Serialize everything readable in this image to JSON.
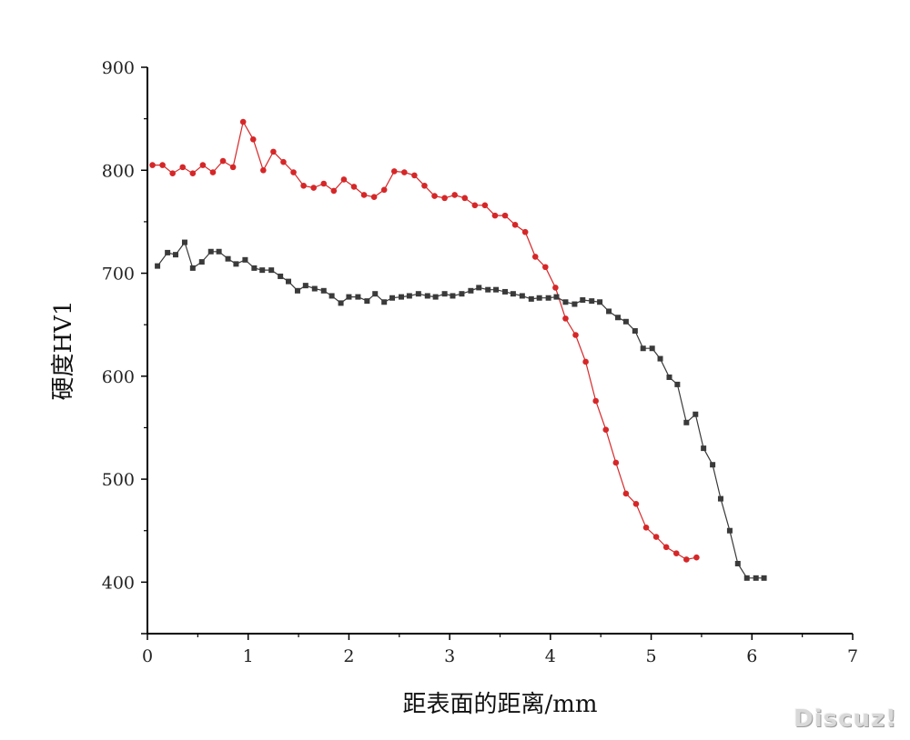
{
  "chart_data": {
    "type": "line",
    "title": "",
    "xlabel": "距表面的距离/mm",
    "ylabel": "硬度HV1",
    "xlim": [
      0,
      7
    ],
    "ylim": [
      350,
      900
    ],
    "xticks": [
      0,
      1,
      2,
      3,
      4,
      5,
      6,
      7
    ],
    "yticks": [
      400,
      500,
      600,
      700,
      800,
      900
    ],
    "grid": false,
    "legend": "none",
    "series": [
      {
        "color": "#d62728",
        "marker": "circle",
        "x": [
          0.05,
          0.15,
          0.25,
          0.35,
          0.45,
          0.55,
          0.65,
          0.75,
          0.85,
          0.95,
          1.05,
          1.15,
          1.25,
          1.35,
          1.45,
          1.55,
          1.65,
          1.75,
          1.85,
          1.95,
          2.05,
          2.15,
          2.25,
          2.35,
          2.45,
          2.55,
          2.65,
          2.75,
          2.85,
          2.95,
          3.05,
          3.15,
          3.25,
          3.35,
          3.45,
          3.55,
          3.65,
          3.75,
          3.85,
          3.95,
          4.05,
          4.15,
          4.25,
          4.35,
          4.45,
          4.55,
          4.65,
          4.75,
          4.85,
          4.95,
          5.05,
          5.15,
          5.25,
          5.35,
          5.45
        ],
        "y": [
          805,
          805,
          797,
          803,
          797,
          805,
          798,
          809,
          803,
          847,
          830,
          800,
          818,
          808,
          798,
          785,
          783,
          787,
          780,
          791,
          784,
          776,
          774,
          781,
          799,
          798,
          795,
          785,
          775,
          773,
          776,
          773,
          766,
          766,
          756,
          756,
          747,
          740,
          716,
          706,
          686,
          656,
          640,
          614,
          576,
          548,
          516,
          486,
          476,
          453,
          444,
          434,
          428,
          422,
          424
        ]
      },
      {
        "color": "#3a3a3a",
        "marker": "square",
        "x": [
          0.1,
          0.2,
          0.28,
          0.37,
          0.45,
          0.54,
          0.63,
          0.71,
          0.8,
          0.88,
          0.97,
          1.06,
          1.14,
          1.23,
          1.32,
          1.4,
          1.49,
          1.57,
          1.66,
          1.75,
          1.83,
          1.92,
          2.0,
          2.09,
          2.18,
          2.26,
          2.35,
          2.43,
          2.52,
          2.6,
          2.69,
          2.78,
          2.86,
          2.95,
          3.03,
          3.12,
          3.21,
          3.29,
          3.38,
          3.46,
          3.55,
          3.63,
          3.72,
          3.81,
          3.89,
          3.98,
          4.06,
          4.15,
          4.24,
          4.32,
          4.41,
          4.49,
          4.58,
          4.67,
          4.75,
          4.84,
          4.92,
          5.01,
          5.09,
          5.18,
          5.26,
          5.35,
          5.44,
          5.52,
          5.61,
          5.69,
          5.78,
          5.86,
          5.95,
          6.04,
          6.12
        ],
        "y": [
          707,
          720,
          718,
          730,
          705,
          711,
          721,
          721,
          714,
          709,
          713,
          705,
          703,
          703,
          697,
          692,
          683,
          688,
          685,
          683,
          678,
          671,
          677,
          677,
          673,
          680,
          672,
          676,
          677,
          678,
          680,
          678,
          677,
          680,
          678,
          680,
          683,
          686,
          684,
          684,
          682,
          680,
          678,
          675,
          676,
          676,
          677,
          672,
          670,
          674,
          673,
          672,
          663,
          657,
          653,
          644,
          627,
          627,
          617,
          599,
          592,
          555,
          563,
          530,
          514,
          481,
          450,
          418,
          404,
          404,
          404
        ]
      }
    ]
  },
  "watermark": "Discuz!"
}
